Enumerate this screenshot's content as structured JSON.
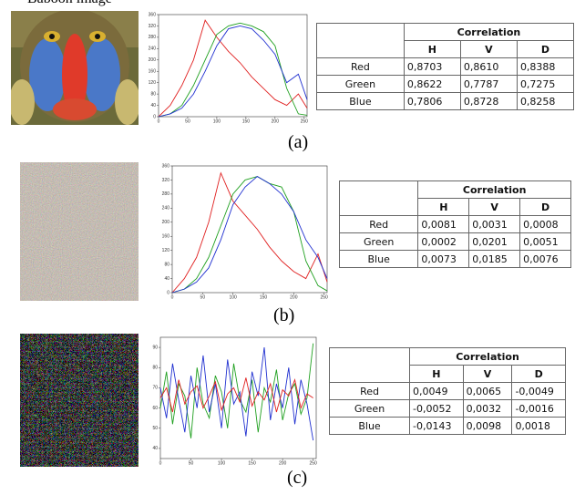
{
  "caption": "Baboon image",
  "panels": [
    {
      "label": "(a)",
      "histogram": {
        "type": "line",
        "xlim": [
          0,
          255
        ],
        "xticks": [
          0,
          50,
          100,
          150,
          200,
          250
        ],
        "ylim": [
          0,
          360
        ],
        "yticks": [
          0,
          40,
          80,
          120,
          160,
          200,
          240,
          280,
          320,
          360
        ],
        "x": [
          0,
          20,
          40,
          60,
          80,
          100,
          120,
          140,
          160,
          180,
          200,
          220,
          240,
          255
        ],
        "series": [
          {
            "color": "#e02020",
            "values": [
              0,
              40,
              110,
              200,
              340,
              280,
              230,
              190,
              140,
              100,
              60,
              40,
              80,
              30
            ]
          },
          {
            "color": "#20a020",
            "values": [
              0,
              10,
              40,
              110,
              200,
              290,
              320,
              330,
              320,
              300,
              250,
              100,
              10,
              5
            ]
          },
          {
            "color": "#2030d0",
            "values": [
              0,
              10,
              30,
              80,
              160,
              250,
              310,
              320,
              310,
              270,
              220,
              120,
              150,
              60
            ]
          }
        ]
      },
      "table": {
        "header": "Correlation",
        "columns": [
          "H",
          "V",
          "D"
        ],
        "rows": [
          {
            "label": "Red",
            "values": [
              "0,8703",
              "0,8610",
              "0,8388"
            ]
          },
          {
            "label": "Green",
            "values": [
              "0,8622",
              "0,7787",
              "0,7275"
            ]
          },
          {
            "label": "Blue",
            "values": [
              "0,7806",
              "0,8728",
              "0,8258"
            ]
          }
        ]
      }
    },
    {
      "label": "(b)",
      "histogram": {
        "type": "line",
        "xlim": [
          0,
          255
        ],
        "xticks": [
          0,
          50,
          100,
          150,
          200,
          250
        ],
        "ylim": [
          0,
          360
        ],
        "yticks": [
          0,
          40,
          80,
          120,
          160,
          200,
          240,
          280,
          320,
          360
        ],
        "x": [
          0,
          20,
          40,
          60,
          80,
          100,
          120,
          140,
          160,
          180,
          200,
          220,
          240,
          255
        ],
        "series": [
          {
            "color": "#e02020",
            "values": [
              0,
              40,
              100,
              200,
              340,
              260,
              220,
              180,
              130,
              90,
              60,
              40,
              110,
              30
            ]
          },
          {
            "color": "#20a020",
            "values": [
              0,
              10,
              40,
              100,
              190,
              280,
              320,
              330,
              310,
              300,
              230,
              90,
              20,
              5
            ]
          },
          {
            "color": "#2030d0",
            "values": [
              0,
              10,
              30,
              70,
              150,
              250,
              300,
              330,
              310,
              280,
              230,
              150,
              100,
              40
            ]
          }
        ]
      },
      "table": {
        "header": "Correlation",
        "columns": [
          "H",
          "V",
          "D"
        ],
        "rows": [
          {
            "label": "Red",
            "values": [
              "0,0081",
              "0,0031",
              "0,0008"
            ]
          },
          {
            "label": "Green",
            "values": [
              "0,0002",
              "0,0201",
              "0,0051"
            ]
          },
          {
            "label": "Blue",
            "values": [
              "0,0073",
              "0,0185",
              "0,0076"
            ]
          }
        ]
      }
    },
    {
      "label": "(c)",
      "histogram": {
        "type": "line",
        "xlim": [
          0,
          255
        ],
        "xticks": [
          0,
          50,
          100,
          150,
          200,
          250
        ],
        "ylim": [
          35,
          95
        ],
        "yticks": [
          40,
          50,
          60,
          70,
          80,
          90
        ],
        "x": [
          0,
          10,
          20,
          30,
          40,
          50,
          60,
          70,
          80,
          90,
          100,
          110,
          120,
          130,
          140,
          150,
          160,
          170,
          180,
          190,
          200,
          210,
          220,
          230,
          240,
          250
        ],
        "series": [
          {
            "color": "#20a020",
            "values": [
              60,
              78,
              52,
              72,
              66,
              45,
              80,
              62,
              55,
              76,
              68,
              50,
              82,
              64,
              58,
              74,
              48,
              70,
              63,
              79,
              54,
              67,
              72,
              57,
              65,
              92
            ]
          },
          {
            "color": "#2030d0",
            "values": [
              70,
              55,
              82,
              64,
              48,
              76,
              60,
              86,
              58,
              72,
              50,
              84,
              62,
              68,
              46,
              78,
              66,
              90,
              54,
              72,
              60,
              80,
              52,
              74,
              62,
              44
            ]
          },
          {
            "color": "#e02020",
            "values": [
              65,
              70,
              58,
              74,
              62,
              68,
              71,
              60,
              66,
              73,
              59,
              67,
              70,
              63,
              75,
              61,
              68,
              64,
              72,
              58,
              69,
              66,
              74,
              60,
              67,
              65
            ]
          }
        ]
      },
      "table": {
        "header": "Correlation",
        "columns": [
          "H",
          "V",
          "D"
        ],
        "rows": [
          {
            "label": "Red",
            "values": [
              "0,0049",
              "0,0065",
              "-0,0049"
            ]
          },
          {
            "label": "Green",
            "values": [
              "-0,0052",
              "0,0032",
              "-0,0016"
            ]
          },
          {
            "label": "Blue",
            "values": [
              "-0,0143",
              "0,0098",
              "0,0018"
            ]
          }
        ]
      }
    }
  ]
}
